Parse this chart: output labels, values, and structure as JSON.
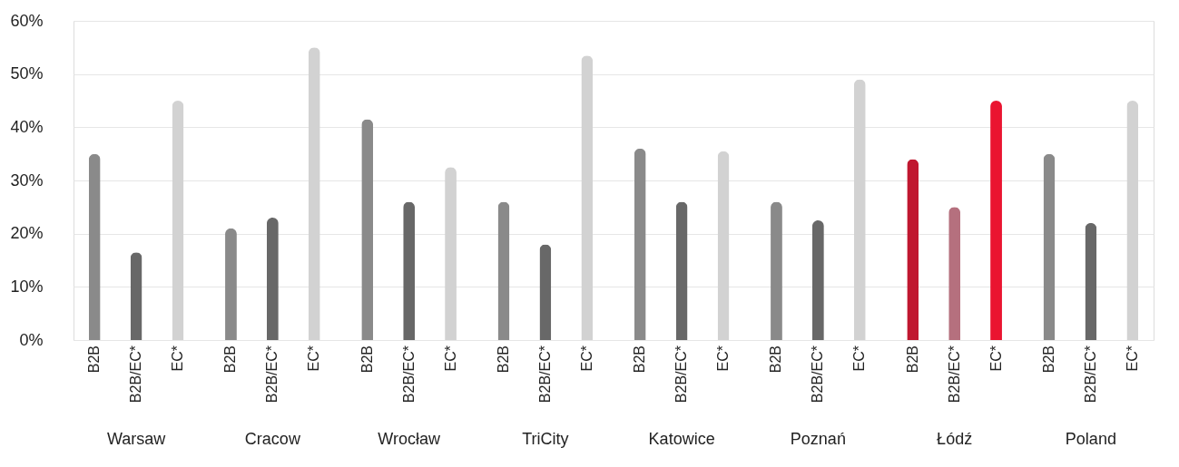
{
  "chart_data": {
    "type": "bar",
    "categories": [
      "Warsaw",
      "Cracow",
      "Wrocław",
      "TriCity",
      "Katowice",
      "Poznań",
      "Łódź",
      "Poland"
    ],
    "series": [
      {
        "name": "B2B",
        "colors": [
          "#8a8a8a",
          "#8a8a8a",
          "#8a8a8a",
          "#8a8a8a",
          "#8a8a8a",
          "#8a8a8a",
          "#c0172f",
          "#8a8a8a"
        ],
        "values": [
          35,
          21,
          41.5,
          26,
          36,
          26,
          34,
          35
        ]
      },
      {
        "name": "B2B/EC*",
        "colors": [
          "#686868",
          "#686868",
          "#686868",
          "#686868",
          "#686868",
          "#686868",
          "#b5707e",
          "#686868"
        ],
        "values": [
          16.5,
          23,
          26,
          18,
          26,
          22.5,
          25,
          22
        ]
      },
      {
        "name": "EC*",
        "colors": [
          "#d2d2d2",
          "#d2d2d2",
          "#d2d2d2",
          "#d2d2d2",
          "#d2d2d2",
          "#d2d2d2",
          "#ea1430",
          "#d2d2d2"
        ],
        "values": [
          45,
          55,
          32.5,
          53.5,
          35.5,
          49,
          45,
          45
        ]
      }
    ],
    "ylim": [
      0,
      60
    ],
    "yticks": [
      {
        "value": 0,
        "label": "0%"
      },
      {
        "value": 10,
        "label": "10%"
      },
      {
        "value": 20,
        "label": "20%"
      },
      {
        "value": 30,
        "label": "30%"
      },
      {
        "value": 40,
        "label": "40%"
      },
      {
        "value": 50,
        "label": "50%"
      },
      {
        "value": 60,
        "label": "60%"
      }
    ],
    "grid": "y"
  }
}
